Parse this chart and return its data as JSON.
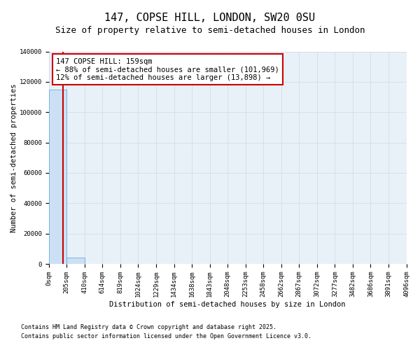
{
  "title": "147, COPSE HILL, LONDON, SW20 0SU",
  "subtitle": "Size of property relative to semi-detached houses in London",
  "xlabel": "Distribution of semi-detached houses by size in London",
  "ylabel": "Number of semi-detached properties",
  "bar_edges": [
    0,
    205,
    410,
    614,
    819,
    1024,
    1229,
    1434,
    1638,
    1843,
    2048,
    2253,
    2458,
    2662,
    2867,
    3072,
    3277,
    3482,
    3686,
    3891,
    4096
  ],
  "bar_labels": [
    "0sqm",
    "205sqm",
    "410sqm",
    "614sqm",
    "819sqm",
    "1024sqm",
    "1229sqm",
    "1434sqm",
    "1638sqm",
    "1843sqm",
    "2048sqm",
    "2253sqm",
    "2458sqm",
    "2662sqm",
    "2867sqm",
    "3072sqm",
    "3277sqm",
    "3482sqm",
    "3686sqm",
    "3891sqm",
    "4096sqm"
  ],
  "bar_heights": [
    115000,
    4000,
    200,
    50,
    20,
    10,
    5,
    3,
    2,
    1,
    1,
    0,
    0,
    0,
    0,
    0,
    0,
    0,
    0,
    0
  ],
  "bar_color": "#cce0f5",
  "bar_edge_color": "#5a9fd4",
  "property_size": 159,
  "property_line_color": "#cc0000",
  "annotation_box_color": "#ffffff",
  "annotation_box_edge_color": "#cc0000",
  "ylim": [
    0,
    140000
  ],
  "yticks": [
    0,
    20000,
    40000,
    60000,
    80000,
    100000,
    120000,
    140000
  ],
  "footer_line1": "Contains HM Land Registry data © Crown copyright and database right 2025.",
  "footer_line2": "Contains public sector information licensed under the Open Government Licence v3.0.",
  "background_color": "#ffffff",
  "grid_color": "#d0d8e8",
  "title_fontsize": 11,
  "subtitle_fontsize": 9,
  "axis_label_fontsize": 7.5,
  "tick_fontsize": 6.5,
  "annotation_fontsize": 7.5,
  "footer_fontsize": 6
}
